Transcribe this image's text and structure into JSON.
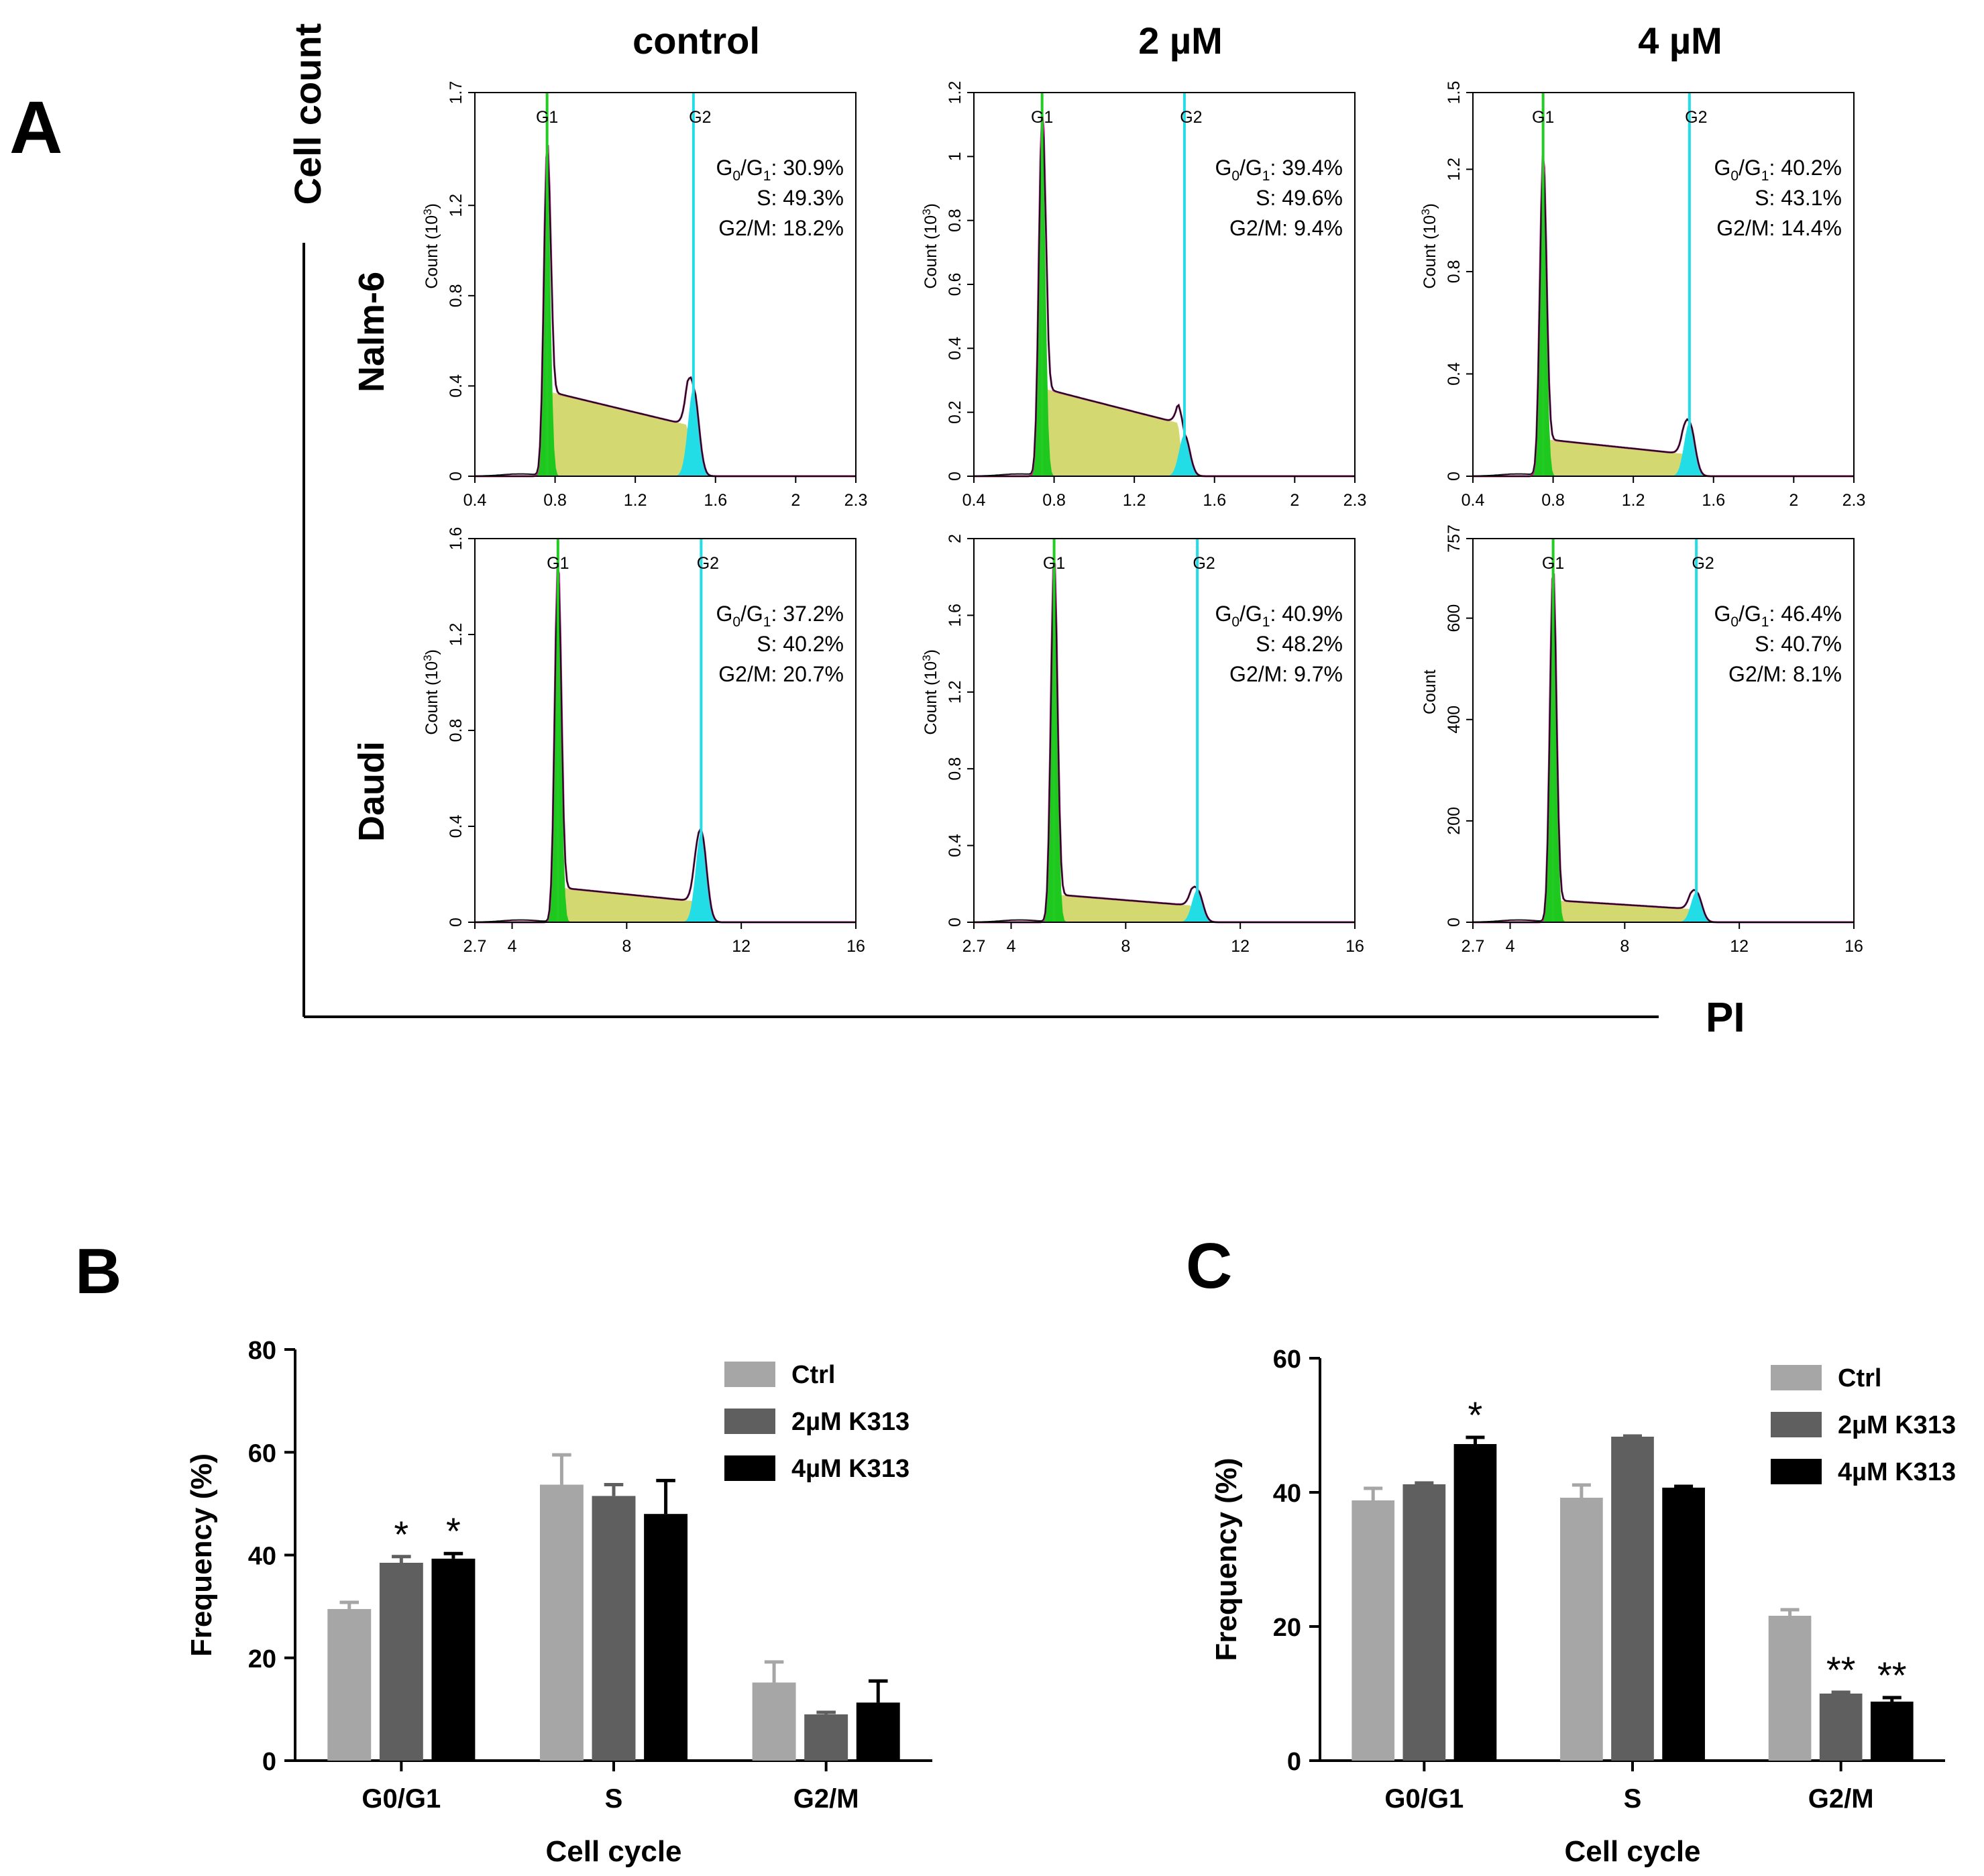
{
  "figure": {
    "panel_a_label": "A",
    "panel_b_label": "B",
    "panel_c_label": "C",
    "y_title": "Cell count",
    "x_title": "PI",
    "columns": [
      "control",
      "2 µM",
      "4 µM"
    ],
    "rows": [
      "Nalm-6",
      "Daudi"
    ]
  },
  "colors": {
    "g1_fill": "#1ec81e",
    "g1_line": "#22cc22",
    "g2_fill": "#22dde6",
    "g2_line": "#22dde6",
    "s_fill": "#d4d870",
    "fit_line": "#d0199c",
    "data_line": "#111111",
    "ctrl_bar": "#a6a6a6",
    "k2_bar": "#5f5f5f",
    "k4_bar": "#000000"
  },
  "chart_data": [
    {
      "type": "area",
      "panel": "A",
      "row": "Nalm-6",
      "column": "control",
      "ylabel": "Count (10",
      "ylabel_sup": "3",
      "ylabel_end": ")",
      "xlim": [
        0.4,
        2.3
      ],
      "ylim": [
        0,
        1.7
      ],
      "xticks": [
        "0.4",
        "0.8",
        "1.2",
        "1.6",
        "2",
        "2.3"
      ],
      "yticks": [
        "0",
        "0.4",
        "0.8",
        "1.2",
        "1.7"
      ],
      "g1_label": "G1",
      "g2_label": "G2",
      "g1_position": 0.76,
      "g2_position": 1.49,
      "g1_peak": 1.45,
      "g2_peak": 0.39,
      "s_level": 0.26,
      "stats": [
        {
          "label": "G0/G1",
          "value": "30.9%"
        },
        {
          "label": "S",
          "value": "49.3%"
        },
        {
          "label": "G2/M",
          "value": "18.2%"
        }
      ]
    },
    {
      "type": "area",
      "panel": "A",
      "row": "Nalm-6",
      "column": "2 µM",
      "ylabel": "Count (10",
      "ylabel_sup": "3",
      "ylabel_end": ")",
      "xlim": [
        0.4,
        2.3
      ],
      "ylim": [
        0,
        1.2
      ],
      "xticks": [
        "0.4",
        "0.8",
        "1.2",
        "1.6",
        "2",
        "2.3"
      ],
      "yticks": [
        "0",
        "0.2",
        "0.4",
        "0.6",
        "0.8",
        "1",
        "1.2"
      ],
      "g1_label": "G1",
      "g2_label": "G2",
      "g1_position": 0.74,
      "g2_position": 1.45,
      "g1_peak": 1.13,
      "g2_peak": 0.13,
      "s_level": 0.19,
      "stats": [
        {
          "label": "G0/G1",
          "value": "39.4%"
        },
        {
          "label": "S",
          "value": "49.6%"
        },
        {
          "label": "G2/M",
          "value": "9.4%"
        }
      ]
    },
    {
      "type": "area",
      "panel": "A",
      "row": "Nalm-6",
      "column": "4 µM",
      "ylabel": "Count (10",
      "ylabel_sup": "3",
      "ylabel_end": ")",
      "xlim": [
        0.4,
        2.3
      ],
      "ylim": [
        0,
        1.5
      ],
      "xticks": [
        "0.4",
        "0.8",
        "1.2",
        "1.6",
        "2",
        "2.3"
      ],
      "yticks": [
        "0",
        "0.4",
        "0.8",
        "1.2",
        "1.5"
      ],
      "g1_label": "G1",
      "g2_label": "G2",
      "g1_position": 0.75,
      "g2_position": 1.48,
      "g1_peak": 1.26,
      "g2_peak": 0.21,
      "s_level": 0.1,
      "stats": [
        {
          "label": "G0/G1",
          "value": "40.2%"
        },
        {
          "label": "S",
          "value": "43.1%"
        },
        {
          "label": "G2/M",
          "value": "14.4%"
        }
      ]
    },
    {
      "type": "area",
      "panel": "A",
      "row": "Daudi",
      "column": "control",
      "ylabel": "Count (10",
      "ylabel_sup": "3",
      "ylabel_end": ")",
      "xlim": [
        2.7,
        16
      ],
      "ylim": [
        0,
        1.6
      ],
      "xticks": [
        "2.7",
        "4",
        "8",
        "12",
        "16"
      ],
      "yticks": [
        "0",
        "0.4",
        "0.8",
        "1.2",
        "1.6"
      ],
      "g1_label": "G1",
      "g2_label": "G2",
      "g1_position": 5.6,
      "g2_position": 10.6,
      "g1_peak": 1.5,
      "g2_peak": 0.38,
      "s_level": 0.1,
      "stats": [
        {
          "label": "G0/G1",
          "value": "37.2%"
        },
        {
          "label": "S",
          "value": "40.2%"
        },
        {
          "label": "G2/M",
          "value": "20.7%"
        }
      ]
    },
    {
      "type": "area",
      "panel": "A",
      "row": "Daudi",
      "column": "2 µM",
      "ylabel": "Count (10",
      "ylabel_sup": "3",
      "ylabel_end": ")",
      "xlim": [
        2.7,
        16
      ],
      "ylim": [
        0,
        2
      ],
      "xticks": [
        "2.7",
        "4",
        "8",
        "12",
        "16"
      ],
      "yticks": [
        "0",
        "0.4",
        "0.8",
        "1.2",
        "1.6",
        "2"
      ],
      "g1_label": "G1",
      "g2_label": "G2",
      "g1_position": 5.5,
      "g2_position": 10.5,
      "g1_peak": 1.9,
      "g2_peak": 0.17,
      "s_level": 0.1,
      "stats": [
        {
          "label": "G0/G1",
          "value": "40.9%"
        },
        {
          "label": "S",
          "value": "48.2%"
        },
        {
          "label": "G2/M",
          "value": "9.7%"
        }
      ]
    },
    {
      "type": "area",
      "panel": "A",
      "row": "Daudi",
      "column": "4 µM",
      "ylabel": "Count",
      "ylabel_sup": "",
      "ylabel_end": "",
      "xlim": [
        2.7,
        16
      ],
      "ylim": [
        0,
        757
      ],
      "xticks": [
        "2.7",
        "4",
        "8",
        "12",
        "16"
      ],
      "yticks": [
        "0",
        "200",
        "400",
        "600",
        "757"
      ],
      "g1_label": "G1",
      "g2_label": "G2",
      "g1_position": 5.5,
      "g2_position": 10.5,
      "g1_peak": 700,
      "g2_peak": 60,
      "s_level": 30,
      "stats": [
        {
          "label": "G0/G1",
          "value": "46.4%"
        },
        {
          "label": "S",
          "value": "40.7%"
        },
        {
          "label": "G2/M",
          "value": "8.1%"
        }
      ]
    },
    {
      "type": "bar",
      "panel": "B",
      "categories": [
        "G0/G1",
        "S",
        "G2/M"
      ],
      "xlabel": "Cell cycle",
      "ylabel": "Frequency (%)",
      "ylim": [
        0,
        80
      ],
      "yticks": [
        "0",
        "20",
        "40",
        "60",
        "80"
      ],
      "series": [
        {
          "name": "Ctrl",
          "values": [
            29.5,
            53.7,
            15.2
          ],
          "errors": [
            1.3,
            5.8,
            4.0
          ],
          "significance": [
            "",
            "",
            ""
          ]
        },
        {
          "name": "2µM K313",
          "values": [
            38.5,
            51.5,
            9.0
          ],
          "errors": [
            1.2,
            2.2,
            0.4
          ],
          "significance": [
            "*",
            "",
            ""
          ]
        },
        {
          "name": "4µM K313",
          "values": [
            39.3,
            48.0,
            11.3
          ],
          "errors": [
            1.0,
            6.5,
            4.2
          ],
          "significance": [
            "*",
            "",
            ""
          ]
        }
      ]
    },
    {
      "type": "bar",
      "panel": "C",
      "categories": [
        "G0/G1",
        "S",
        "G2/M"
      ],
      "xlabel": "Cell cycle",
      "ylabel": "Frequency (%)",
      "ylim": [
        0,
        60
      ],
      "yticks": [
        "0",
        "20",
        "40",
        "60"
      ],
      "series": [
        {
          "name": "Ctrl",
          "values": [
            38.8,
            39.2,
            21.6
          ],
          "errors": [
            1.8,
            1.9,
            0.9
          ],
          "significance": [
            "",
            "",
            ""
          ]
        },
        {
          "name": "2µM K313",
          "values": [
            41.2,
            48.3,
            10.0
          ],
          "errors": [
            0.2,
            0.1,
            0.2
          ],
          "significance": [
            "",
            "",
            "**"
          ]
        },
        {
          "name": "4µM K313",
          "values": [
            47.2,
            40.7,
            8.8
          ],
          "errors": [
            1.0,
            0.2,
            0.6
          ],
          "significance": [
            "*",
            "",
            "**"
          ]
        }
      ]
    }
  ]
}
